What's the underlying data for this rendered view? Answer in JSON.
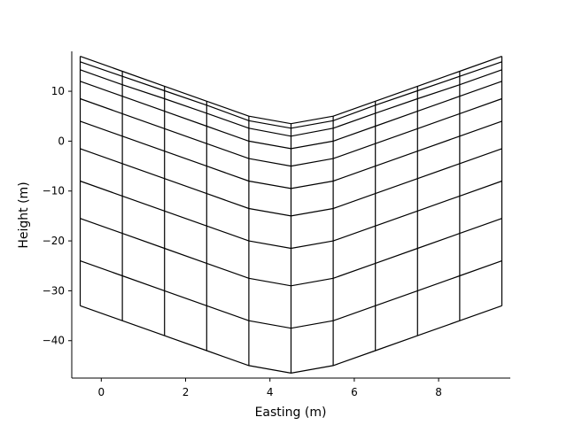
{
  "chart_data": {
    "type": "line",
    "title": "",
    "xlabel": "Easting (m)",
    "ylabel": "Height (m)",
    "xlim": [
      -0.7,
      9.7
    ],
    "ylim": [
      -47.5,
      18
    ],
    "xticks": [
      0,
      2,
      4,
      6,
      8
    ],
    "yticks": [
      10,
      0,
      -10,
      -20,
      -30,
      -40
    ],
    "xtick_labels": [
      "0",
      "2",
      "4",
      "6",
      "8"
    ],
    "ytick_labels": [
      "10",
      "0",
      "−10",
      "−20",
      "−30",
      "−40"
    ],
    "grid": false,
    "line_color": "#000000",
    "columns_x": [
      -0.5,
      0.5,
      1.5,
      2.5,
      3.5,
      4.5,
      5.5,
      6.5,
      7.5,
      8.5,
      9.5
    ],
    "layers": [
      {
        "y": [
          17.0,
          14.0,
          11.0,
          8.0,
          5.0,
          3.5,
          5.0,
          8.0,
          11.0,
          14.0,
          17.0
        ]
      },
      {
        "y": [
          15.9,
          13.0,
          10.1,
          7.2,
          4.1,
          2.6,
          4.1,
          7.2,
          10.1,
          13.0,
          15.9
        ]
      },
      {
        "y": [
          14.3,
          11.3,
          8.5,
          5.6,
          2.6,
          1.0,
          2.6,
          5.6,
          8.5,
          11.3,
          14.3
        ]
      },
      {
        "y": [
          12.0,
          9.0,
          6.0,
          3.0,
          0.0,
          -1.5,
          0.0,
          3.0,
          6.0,
          9.0,
          12.0
        ]
      },
      {
        "y": [
          8.5,
          5.5,
          2.5,
          -0.5,
          -3.5,
          -5.0,
          -3.5,
          -0.5,
          2.5,
          5.5,
          8.5
        ]
      },
      {
        "y": [
          4.0,
          1.0,
          -2.0,
          -5.0,
          -8.0,
          -9.5,
          -8.0,
          -5.0,
          -2.0,
          1.0,
          4.0
        ]
      },
      {
        "y": [
          -1.5,
          -4.5,
          -7.5,
          -10.5,
          -13.5,
          -15.0,
          -13.5,
          -10.5,
          -7.5,
          -4.5,
          -1.5
        ]
      },
      {
        "y": [
          -8.0,
          -11.0,
          -14.0,
          -17.0,
          -20.0,
          -21.5,
          -20.0,
          -17.0,
          -14.0,
          -11.0,
          -8.0
        ]
      },
      {
        "y": [
          -15.5,
          -18.5,
          -21.5,
          -24.5,
          -27.5,
          -29.0,
          -27.5,
          -24.5,
          -21.5,
          -18.5,
          -15.5
        ]
      },
      {
        "y": [
          -24.0,
          -27.0,
          -30.0,
          -33.0,
          -36.0,
          -37.5,
          -36.0,
          -33.0,
          -30.0,
          -27.0,
          -24.0
        ]
      },
      {
        "y": [
          -33.0,
          -36.0,
          -39.0,
          -42.0,
          -45.0,
          -46.5,
          -45.0,
          -42.0,
          -39.0,
          -36.0,
          -33.0
        ]
      }
    ]
  }
}
